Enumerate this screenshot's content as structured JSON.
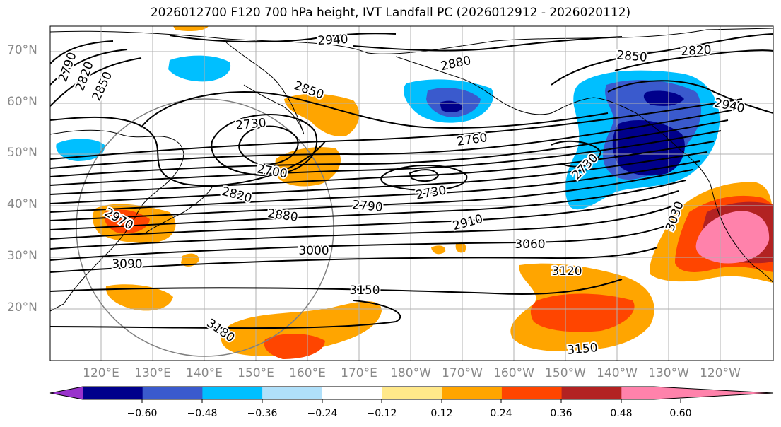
{
  "title": "2026012700 F120 700 hPa height, IVT Landfall PC (2026012912 - 2026020112)",
  "lat_labels": [
    "70°N",
    "60°N",
    "50°N",
    "40°N",
    "30°N",
    "20°N"
  ],
  "lon_labels": [
    "120°E",
    "130°E",
    "140°E",
    "150°E",
    "160°E",
    "170°E",
    "180°W",
    "170°W",
    "160°W",
    "150°W",
    "140°W",
    "130°W",
    "120°W"
  ],
  "height_contour_labels": [
    "2700",
    "2730",
    "2730",
    "2730",
    "2760",
    "2790",
    "2790",
    "2820",
    "2820",
    "2820",
    "2850",
    "2850",
    "2850",
    "2880",
    "2880",
    "2910",
    "2940",
    "2940",
    "2970",
    "3000",
    "3030",
    "3060",
    "3090",
    "3120",
    "3150",
    "3150",
    "3180"
  ],
  "colorbar": {
    "ticks": [
      "−0.60",
      "−0.48",
      "−0.36",
      "−0.24",
      "−0.12",
      "0.12",
      "0.24",
      "0.36",
      "0.48",
      "0.60"
    ],
    "colors": [
      "#9932cc",
      "#00008b",
      "#3a5acd",
      "#00bfff",
      "#b0e0fa",
      "#ffffff",
      "#ffe88a",
      "#ffa500",
      "#ff4500",
      "#b22222",
      "#ff82ab"
    ]
  }
}
